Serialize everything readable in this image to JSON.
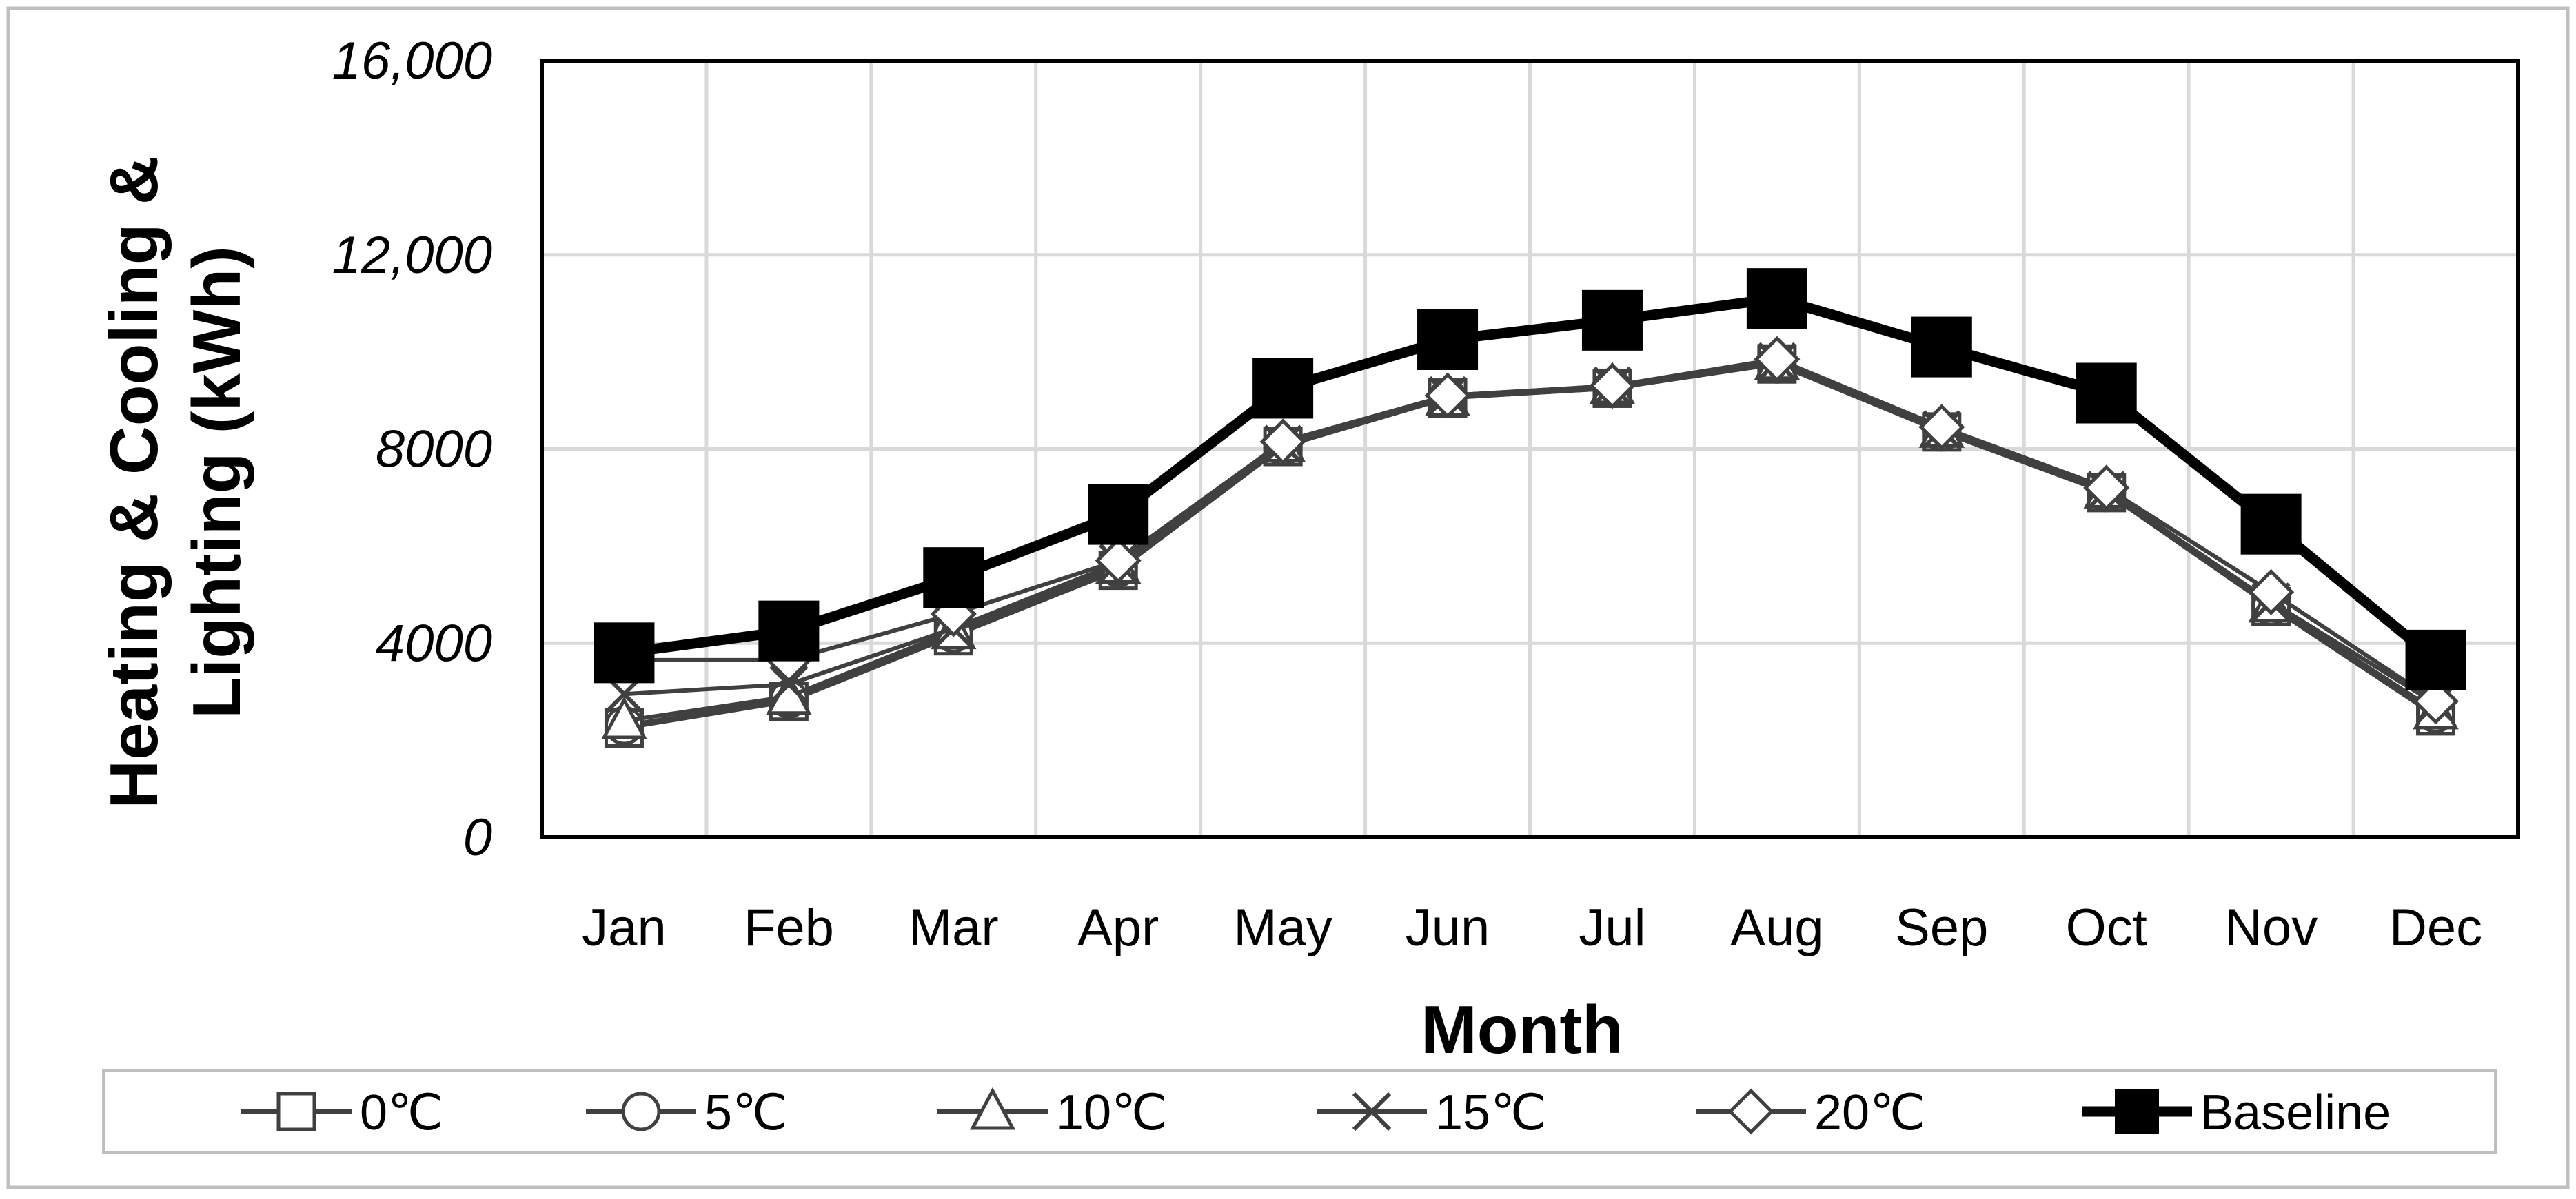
{
  "chart_data": {
    "type": "line",
    "title": "",
    "xlabel": "Month",
    "ylabel_lines": [
      "Heating & Cooling &",
      "Lighting (kWh)"
    ],
    "categories": [
      "Jan",
      "Feb",
      "Mar",
      "Apr",
      "May",
      "Jun",
      "Jul",
      "Aug",
      "Sep",
      "Oct",
      "Nov",
      "Dec"
    ],
    "ylim": [
      0,
      16000
    ],
    "yticks": [
      0,
      4000,
      8000,
      12000,
      16000
    ],
    "ytick_labels": [
      "0",
      "4000",
      "8000",
      "12,000",
      "16,000"
    ],
    "grid": true,
    "legend_position": "bottom",
    "series": [
      {
        "name": "0℃",
        "marker": "square-open",
        "values": [
          2250,
          2800,
          4150,
          5500,
          8050,
          9050,
          9250,
          9750,
          8350,
          7100,
          4750,
          2500
        ]
      },
      {
        "name": "5℃",
        "marker": "circle-open",
        "values": [
          2300,
          2850,
          4200,
          5550,
          8050,
          9050,
          9250,
          9750,
          8350,
          7100,
          4750,
          2550
        ]
      },
      {
        "name": "10℃",
        "marker": "triangle-open",
        "values": [
          2400,
          2900,
          4250,
          5600,
          8100,
          9050,
          9300,
          9800,
          8400,
          7150,
          4800,
          2600
        ]
      },
      {
        "name": "15℃",
        "marker": "x",
        "values": [
          2950,
          3150,
          4300,
          5650,
          8100,
          9100,
          9300,
          9800,
          8400,
          7150,
          4850,
          2750
        ]
      },
      {
        "name": "20℃",
        "marker": "diamond-open",
        "values": [
          3650,
          3650,
          4600,
          5700,
          8150,
          9100,
          9300,
          9850,
          8450,
          7200,
          5050,
          2800
        ]
      },
      {
        "name": "Baseline",
        "marker": "square-filled",
        "values": [
          3800,
          4250,
          5350,
          6650,
          9250,
          10250,
          10650,
          11100,
          10100,
          9150,
          6450,
          3650
        ]
      }
    ],
    "colors": {
      "line": "#404040",
      "baseline": "#000000",
      "grid": "#d9d9d9",
      "marker_fill": "#ffffff"
    }
  }
}
